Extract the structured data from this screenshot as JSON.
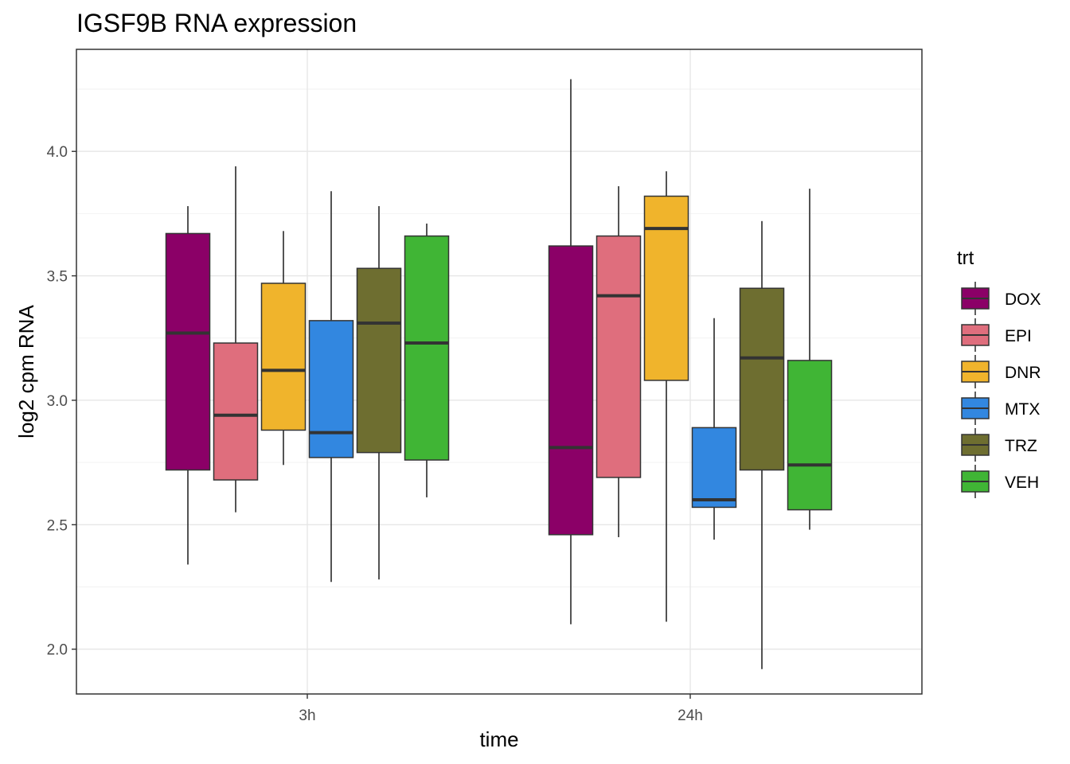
{
  "chart_data": {
    "type": "boxplot",
    "title": "IGSF9B RNA expression",
    "xlabel": "time",
    "ylabel": "log2 cpm RNA",
    "categories": [
      "3h",
      "24h"
    ],
    "ylim": [
      1.82,
      4.41
    ],
    "yticks": [
      2.0,
      2.5,
      3.0,
      3.5,
      4.0
    ],
    "ytick_labels": [
      "2.0",
      "2.5",
      "3.0",
      "3.5",
      "4.0"
    ],
    "grid": true,
    "legend": {
      "title": "trt",
      "position": "right",
      "entries": [
        "DOX",
        "EPI",
        "DNR",
        "MTX",
        "TRZ",
        "VEH"
      ]
    },
    "colors": {
      "DOX": "#8b0067",
      "EPI": "#df6e7d",
      "DNR": "#f0b42c",
      "MTX": "#3287e0",
      "TRZ": "#6e6e30",
      "VEH": "#40b535"
    },
    "series": [
      {
        "name": "DOX",
        "boxes": [
          {
            "category": "3h",
            "min": 2.34,
            "q1": 2.72,
            "median": 3.27,
            "q3": 3.67,
            "max": 3.78
          },
          {
            "category": "24h",
            "min": 2.1,
            "q1": 2.46,
            "median": 2.81,
            "q3": 3.62,
            "max": 4.29
          }
        ]
      },
      {
        "name": "EPI",
        "boxes": [
          {
            "category": "3h",
            "min": 2.55,
            "q1": 2.68,
            "median": 2.94,
            "q3": 3.23,
            "max": 3.94
          },
          {
            "category": "24h",
            "min": 2.45,
            "q1": 2.69,
            "median": 3.42,
            "q3": 3.66,
            "max": 3.86
          }
        ]
      },
      {
        "name": "DNR",
        "boxes": [
          {
            "category": "3h",
            "min": 2.74,
            "q1": 2.88,
            "median": 3.12,
            "q3": 3.47,
            "max": 3.68
          },
          {
            "category": "24h",
            "min": 2.11,
            "q1": 3.08,
            "median": 3.69,
            "q3": 3.82,
            "max": 3.92
          }
        ]
      },
      {
        "name": "MTX",
        "boxes": [
          {
            "category": "3h",
            "min": 2.27,
            "q1": 2.77,
            "median": 2.87,
            "q3": 3.32,
            "max": 3.84
          },
          {
            "category": "24h",
            "min": 2.44,
            "q1": 2.57,
            "median": 2.6,
            "q3": 2.89,
            "max": 3.33
          }
        ]
      },
      {
        "name": "TRZ",
        "boxes": [
          {
            "category": "3h",
            "min": 2.28,
            "q1": 2.79,
            "median": 3.31,
            "q3": 3.53,
            "max": 3.78
          },
          {
            "category": "24h",
            "min": 1.92,
            "q1": 2.72,
            "median": 3.17,
            "q3": 3.45,
            "max": 3.72
          }
        ]
      },
      {
        "name": "VEH",
        "boxes": [
          {
            "category": "3h",
            "min": 2.61,
            "q1": 2.76,
            "median": 3.23,
            "q3": 3.66,
            "max": 3.71
          },
          {
            "category": "24h",
            "min": 2.48,
            "q1": 2.56,
            "median": 2.74,
            "q3": 3.16,
            "max": 3.85
          }
        ]
      }
    ]
  }
}
